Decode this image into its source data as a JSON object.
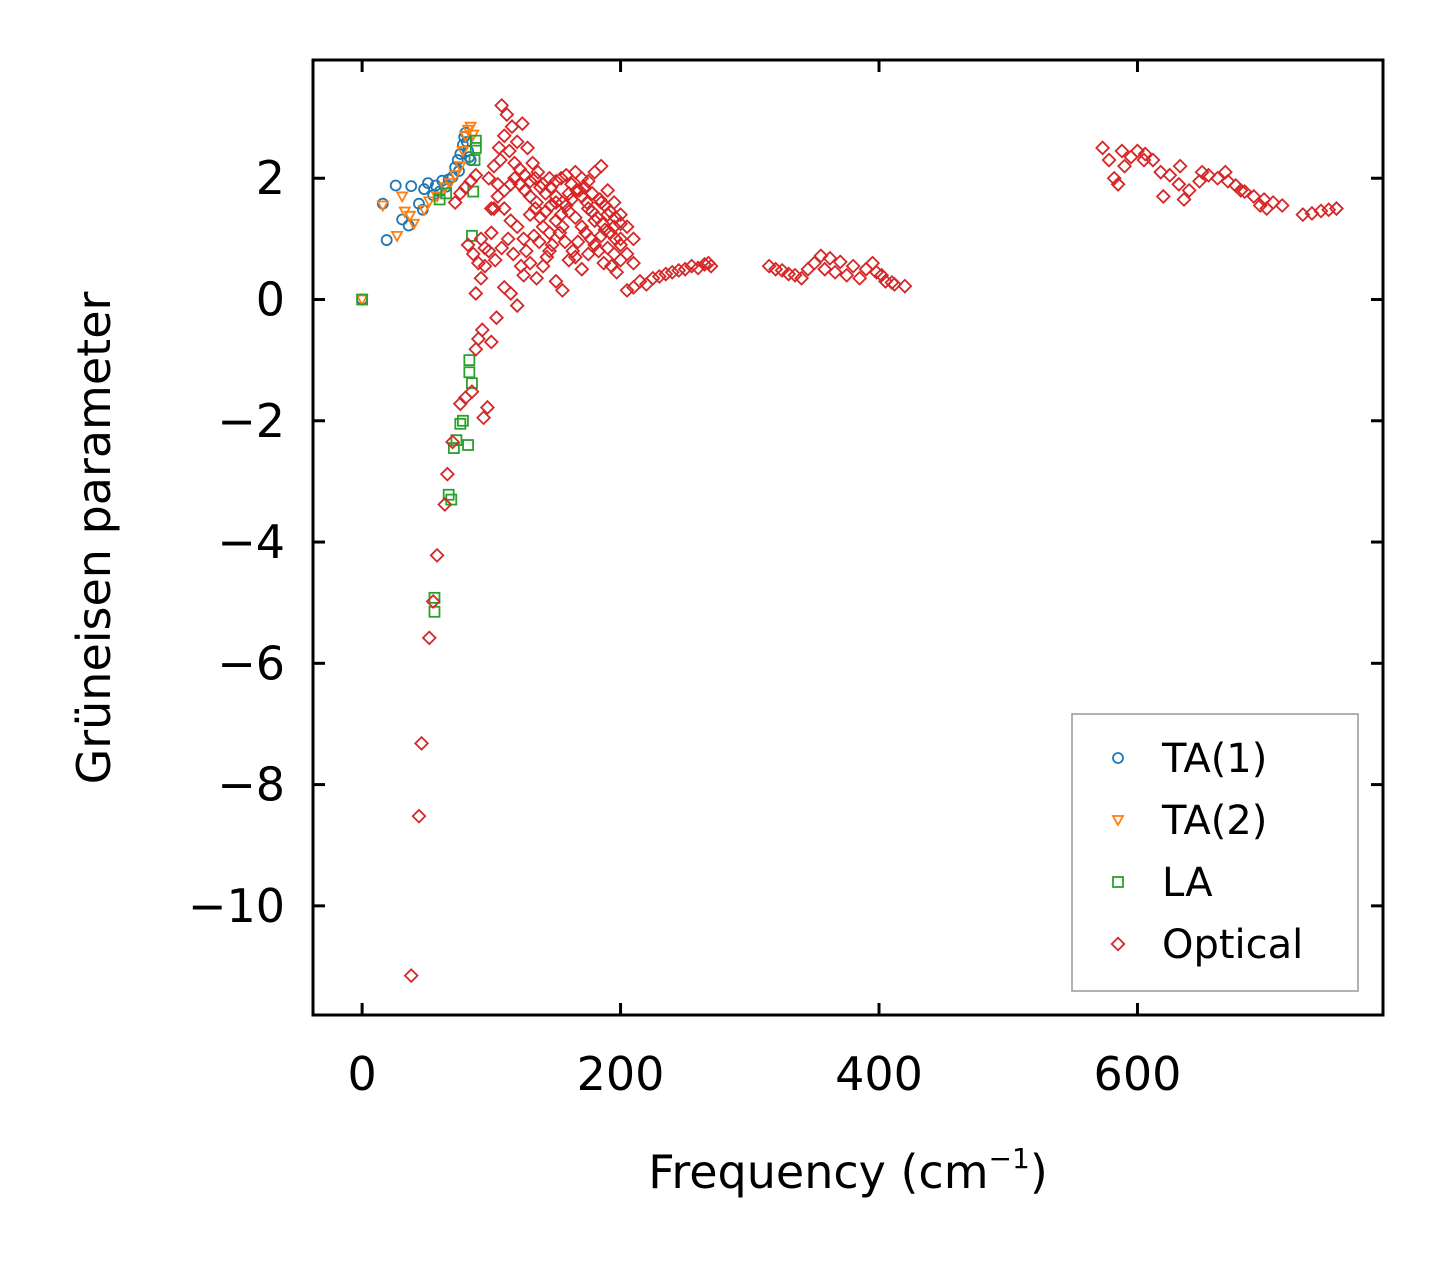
{
  "chart_data": {
    "type": "scatter",
    "title": "",
    "xlabel": "Frequency (cm",
    "xlabel_unit_exponent": "−1",
    "xlabel_close": ")",
    "ylabel": "Grüneisen parameter",
    "xlim": [
      -38,
      790
    ],
    "ylim": [
      -11.8,
      3.95
    ],
    "xticks": [
      0,
      200,
      400,
      600
    ],
    "xtick_labels": [
      "0",
      "200",
      "400",
      "600"
    ],
    "yticks": [
      2,
      0,
      -2,
      -4,
      -6,
      -8,
      -10
    ],
    "ytick_labels": [
      "2",
      "0",
      "−2",
      "−4",
      "−6",
      "−8",
      "−10"
    ],
    "grid": false,
    "legend_position": "lower-right",
    "series": [
      {
        "name": "TA(1)",
        "marker": "circle",
        "color": "#1f77b4",
        "points": [
          [
            0,
            0
          ],
          [
            16,
            1.58
          ],
          [
            19,
            0.98
          ],
          [
            26,
            1.88
          ],
          [
            31,
            1.32
          ],
          [
            36,
            1.22
          ],
          [
            38,
            1.87
          ],
          [
            44,
            1.58
          ],
          [
            48,
            1.82
          ],
          [
            47,
            1.48
          ],
          [
            51,
            1.92
          ],
          [
            55,
            1.72
          ],
          [
            57,
            1.88
          ],
          [
            60,
            1.78
          ],
          [
            62,
            1.96
          ],
          [
            65,
            1.86
          ],
          [
            67,
            1.98
          ],
          [
            70,
            2.02
          ],
          [
            72,
            2.18
          ],
          [
            74,
            2.3
          ],
          [
            75,
            2.12
          ],
          [
            76,
            2.4
          ],
          [
            78,
            2.55
          ],
          [
            79,
            2.68
          ],
          [
            80,
            2.75
          ],
          [
            81,
            2.6
          ],
          [
            82,
            2.45
          ],
          [
            83,
            2.35
          ],
          [
            84,
            2.3
          ]
        ]
      },
      {
        "name": "TA(2)",
        "marker": "triangle-down",
        "color": "#ff7f0e",
        "points": [
          [
            0,
            0
          ],
          [
            16,
            1.55
          ],
          [
            27,
            1.05
          ],
          [
            31,
            1.7
          ],
          [
            33,
            1.45
          ],
          [
            37,
            1.38
          ],
          [
            40,
            1.25
          ],
          [
            48,
            1.48
          ],
          [
            52,
            1.62
          ],
          [
            58,
            1.7
          ],
          [
            64,
            1.85
          ],
          [
            68,
            1.92
          ],
          [
            72,
            2.05
          ],
          [
            76,
            2.2
          ],
          [
            78,
            2.45
          ],
          [
            80,
            2.7
          ],
          [
            82,
            2.8
          ],
          [
            84,
            2.85
          ],
          [
            86,
            2.72
          ]
        ]
      },
      {
        "name": "LA",
        "marker": "square",
        "color": "#2ca02c",
        "points": [
          [
            0,
            0
          ],
          [
            56,
            -4.92
          ],
          [
            56,
            -5.15
          ],
          [
            67,
            -3.22
          ],
          [
            69,
            -3.3
          ],
          [
            71,
            -2.45
          ],
          [
            73,
            -2.32
          ],
          [
            76,
            -2.05
          ],
          [
            78,
            -2.0
          ],
          [
            82,
            -2.4
          ],
          [
            83,
            -1.0
          ],
          [
            83,
            -1.2
          ],
          [
            85,
            -1.38
          ],
          [
            85,
            1.05
          ],
          [
            86,
            1.78
          ],
          [
            87,
            2.3
          ],
          [
            88,
            2.5
          ],
          [
            88,
            2.62
          ],
          [
            60,
            1.65
          ],
          [
            65,
            1.75
          ]
        ]
      },
      {
        "name": "Optical",
        "marker": "diamond",
        "color": "#d62728",
        "points": [
          [
            38,
            -11.15
          ],
          [
            44,
            -8.52
          ],
          [
            46,
            -7.32
          ],
          [
            52,
            -5.58
          ],
          [
            55,
            -4.98
          ],
          [
            58,
            -4.22
          ],
          [
            64,
            -3.38
          ],
          [
            66,
            -2.88
          ],
          [
            70,
            -2.35
          ],
          [
            76,
            -1.72
          ],
          [
            80,
            -1.62
          ],
          [
            85,
            -1.52
          ],
          [
            88,
            -0.82
          ],
          [
            90,
            -0.65
          ],
          [
            93,
            -0.5
          ],
          [
            94,
            -1.95
          ],
          [
            97,
            -1.78
          ],
          [
            100,
            -0.7
          ],
          [
            104,
            -0.3
          ],
          [
            110,
            0.2
          ],
          [
            115,
            0.1
          ],
          [
            120,
            -0.1
          ],
          [
            125,
            0.4
          ],
          [
            130,
            0.6
          ],
          [
            135,
            0.35
          ],
          [
            140,
            0.55
          ],
          [
            145,
            0.8
          ],
          [
            150,
            0.3
          ],
          [
            155,
            0.15
          ],
          [
            160,
            0.65
          ],
          [
            165,
            0.7
          ],
          [
            170,
            0.5
          ],
          [
            175,
            0.75
          ],
          [
            180,
            0.9
          ],
          [
            185,
            1.05
          ],
          [
            190,
            0.85
          ],
          [
            195,
            0.75
          ],
          [
            200,
            0.65
          ],
          [
            88,
            0.1
          ],
          [
            92,
            0.35
          ],
          [
            95,
            0.55
          ],
          [
            98,
            0.8
          ],
          [
            100,
            1.1
          ],
          [
            102,
            1.5
          ],
          [
            105,
            1.9
          ],
          [
            107,
            2.3
          ],
          [
            108,
            3.2
          ],
          [
            112,
            3.05
          ],
          [
            116,
            2.85
          ],
          [
            120,
            2.6
          ],
          [
            124,
            2.9
          ],
          [
            128,
            2.5
          ],
          [
            132,
            2.25
          ],
          [
            136,
            2.1
          ],
          [
            140,
            1.9
          ],
          [
            145,
            2.0
          ],
          [
            150,
            1.7
          ],
          [
            155,
            1.6
          ],
          [
            160,
            1.75
          ],
          [
            165,
            2.1
          ],
          [
            170,
            2.0
          ],
          [
            175,
            1.95
          ],
          [
            180,
            2.1
          ],
          [
            185,
            2.2
          ],
          [
            190,
            1.8
          ],
          [
            195,
            1.6
          ],
          [
            200,
            1.4
          ],
          [
            205,
            1.2
          ],
          [
            210,
            1.0
          ],
          [
            110,
            1.5
          ],
          [
            115,
            1.3
          ],
          [
            120,
            1.2
          ],
          [
            125,
            1.0
          ],
          [
            130,
            1.4
          ],
          [
            135,
            1.6
          ],
          [
            140,
            1.2
          ],
          [
            145,
            1.1
          ],
          [
            150,
            1.3
          ],
          [
            155,
            1.2
          ],
          [
            160,
            1.45
          ],
          [
            165,
            1.35
          ],
          [
            170,
            1.2
          ],
          [
            175,
            1.5
          ],
          [
            180,
            1.3
          ],
          [
            185,
            1.6
          ],
          [
            190,
            1.4
          ],
          [
            195,
            1.2
          ],
          [
            200,
            1.0
          ],
          [
            92,
            1.0
          ],
          [
            95,
            0.85
          ],
          [
            100,
            1.5
          ],
          [
            105,
            1.7
          ],
          [
            110,
            1.8
          ],
          [
            115,
            1.9
          ],
          [
            118,
            2.0
          ],
          [
            122,
            1.9
          ],
          [
            126,
            1.8
          ],
          [
            130,
            1.7
          ],
          [
            134,
            1.5
          ],
          [
            138,
            1.35
          ],
          [
            142,
            1.45
          ],
          [
            146,
            1.55
          ],
          [
            150,
            1.6
          ],
          [
            154,
            1.4
          ],
          [
            158,
            1.55
          ],
          [
            162,
            1.65
          ],
          [
            166,
            1.8
          ],
          [
            170,
            1.7
          ],
          [
            174,
            1.6
          ],
          [
            178,
            1.45
          ],
          [
            182,
            1.35
          ],
          [
            186,
            1.25
          ],
          [
            188,
            1.15
          ],
          [
            192,
            1.1
          ],
          [
            196,
            1.0
          ],
          [
            200,
            0.9
          ],
          [
            205,
            0.75
          ],
          [
            210,
            0.6
          ],
          [
            103,
            0.65
          ],
          [
            108,
            0.85
          ],
          [
            113,
            1.0
          ],
          [
            117,
            0.75
          ],
          [
            123,
            0.55
          ],
          [
            127,
            0.8
          ],
          [
            133,
            1.05
          ],
          [
            137,
            0.95
          ],
          [
            143,
            0.7
          ],
          [
            147,
            0.9
          ],
          [
            153,
            1.1
          ],
          [
            157,
            0.95
          ],
          [
            163,
            0.8
          ],
          [
            167,
            0.95
          ],
          [
            173,
            1.1
          ],
          [
            177,
            1.0
          ],
          [
            183,
            0.8
          ],
          [
            187,
            0.6
          ],
          [
            193,
            0.55
          ],
          [
            197,
            0.45
          ],
          [
            98,
            2.0
          ],
          [
            102,
            2.2
          ],
          [
            106,
            2.5
          ],
          [
            110,
            2.7
          ],
          [
            114,
            2.45
          ],
          [
            118,
            2.25
          ],
          [
            122,
            2.15
          ],
          [
            126,
            2.05
          ],
          [
            130,
            1.95
          ],
          [
            134,
            2.0
          ],
          [
            138,
            1.85
          ],
          [
            142,
            1.75
          ],
          [
            146,
            1.85
          ],
          [
            150,
            1.95
          ],
          [
            154,
            2.0
          ],
          [
            158,
            2.05
          ],
          [
            162,
            1.9
          ],
          [
            168,
            1.8
          ],
          [
            172,
            1.85
          ],
          [
            178,
            1.75
          ],
          [
            184,
            1.65
          ],
          [
            188,
            1.55
          ],
          [
            192,
            1.45
          ],
          [
            196,
            1.35
          ],
          [
            200,
            1.25
          ],
          [
            82,
            0.9
          ],
          [
            86,
            0.75
          ],
          [
            90,
            0.6
          ],
          [
            72,
            1.6
          ],
          [
            76,
            1.75
          ],
          [
            80,
            1.85
          ],
          [
            84,
            1.95
          ],
          [
            88,
            2.05
          ],
          [
            205,
            0.15
          ],
          [
            215,
            0.3
          ],
          [
            225,
            0.35
          ],
          [
            235,
            0.42
          ],
          [
            245,
            0.48
          ],
          [
            255,
            0.55
          ],
          [
            265,
            0.58
          ],
          [
            270,
            0.55
          ],
          [
            210,
            0.2
          ],
          [
            220,
            0.25
          ],
          [
            230,
            0.38
          ],
          [
            240,
            0.45
          ],
          [
            250,
            0.5
          ],
          [
            260,
            0.52
          ],
          [
            268,
            0.6
          ],
          [
            315,
            0.55
          ],
          [
            325,
            0.48
          ],
          [
            335,
            0.4
          ],
          [
            345,
            0.5
          ],
          [
            355,
            0.72
          ],
          [
            362,
            0.68
          ],
          [
            370,
            0.62
          ],
          [
            380,
            0.55
          ],
          [
            390,
            0.5
          ],
          [
            398,
            0.45
          ],
          [
            405,
            0.3
          ],
          [
            412,
            0.25
          ],
          [
            420,
            0.22
          ],
          [
            320,
            0.5
          ],
          [
            330,
            0.42
          ],
          [
            340,
            0.35
          ],
          [
            350,
            0.6
          ],
          [
            358,
            0.5
          ],
          [
            366,
            0.45
          ],
          [
            375,
            0.4
          ],
          [
            385,
            0.35
          ],
          [
            395,
            0.6
          ],
          [
            402,
            0.4
          ],
          [
            410,
            0.28
          ],
          [
            573,
            2.5
          ],
          [
            578,
            2.3
          ],
          [
            582,
            2.0
          ],
          [
            585,
            1.9
          ],
          [
            590,
            2.2
          ],
          [
            595,
            2.35
          ],
          [
            600,
            2.45
          ],
          [
            606,
            2.4
          ],
          [
            612,
            2.3
          ],
          [
            618,
            2.1
          ],
          [
            625,
            2.05
          ],
          [
            632,
            1.9
          ],
          [
            640,
            1.8
          ],
          [
            648,
            1.95
          ],
          [
            655,
            2.05
          ],
          [
            662,
            2.0
          ],
          [
            670,
            1.95
          ],
          [
            676,
            1.88
          ],
          [
            683,
            1.78
          ],
          [
            690,
            1.7
          ],
          [
            698,
            1.65
          ],
          [
            705,
            1.6
          ],
          [
            712,
            1.55
          ],
          [
            633,
            2.2
          ],
          [
            650,
            2.1
          ],
          [
            668,
            2.1
          ],
          [
            680,
            1.8
          ],
          [
            695,
            1.55
          ],
          [
            620,
            1.7
          ],
          [
            636,
            1.65
          ],
          [
            700,
            1.5
          ],
          [
            588,
            2.45
          ],
          [
            605,
            2.3
          ],
          [
            728,
            1.4
          ],
          [
            735,
            1.42
          ],
          [
            742,
            1.46
          ],
          [
            748,
            1.48
          ],
          [
            754,
            1.5
          ]
        ]
      }
    ]
  }
}
